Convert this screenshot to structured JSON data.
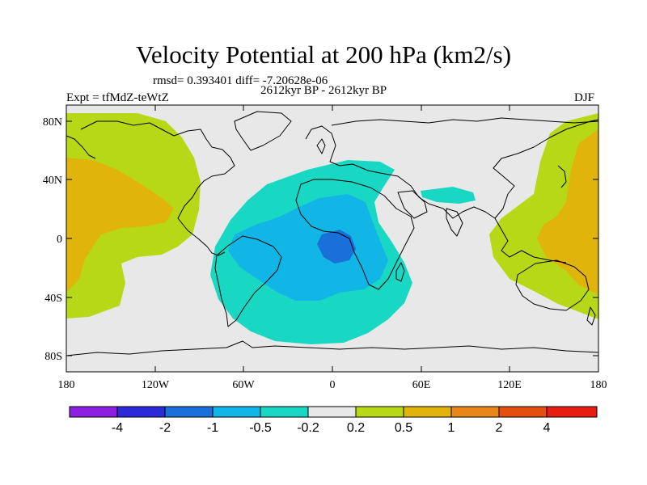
{
  "title": "Velocity Potential at 200 hPa (km2/s)",
  "stats": "rmsd= 0.393401 diff= -7.20628e-06",
  "period": "2612kyr BP - 2612kyr BP",
  "experiment": "Expt = tfMdZ-teWtZ",
  "season": "DJF",
  "lat_ticks": [
    "80N",
    "40N",
    "0",
    "40S",
    "80S"
  ],
  "lon_ticks": [
    "180",
    "120W",
    "60W",
    "0",
    "60E",
    "120E",
    "180"
  ],
  "colorbar": {
    "colors": [
      "#8c1fe0",
      "#2a2ad8",
      "#1a6fd9",
      "#12b6e6",
      "#18d8c4",
      "#e8e8e8",
      "#b6d816",
      "#e0b40a",
      "#e8861a",
      "#e44e10",
      "#e81c10"
    ],
    "labels": [
      "-4",
      "-2",
      "-1",
      "-0.5",
      "-0.2",
      "0.2",
      "0.5",
      "1",
      "2",
      "4"
    ]
  },
  "colors": {
    "background": "#e8e8e8",
    "pos_light": "#b6d816",
    "pos_mid": "#e0b40a",
    "neg_light": "#18d8c4",
    "neg_mid": "#12b6e6",
    "neg_strong": "#1a6fd9"
  }
}
